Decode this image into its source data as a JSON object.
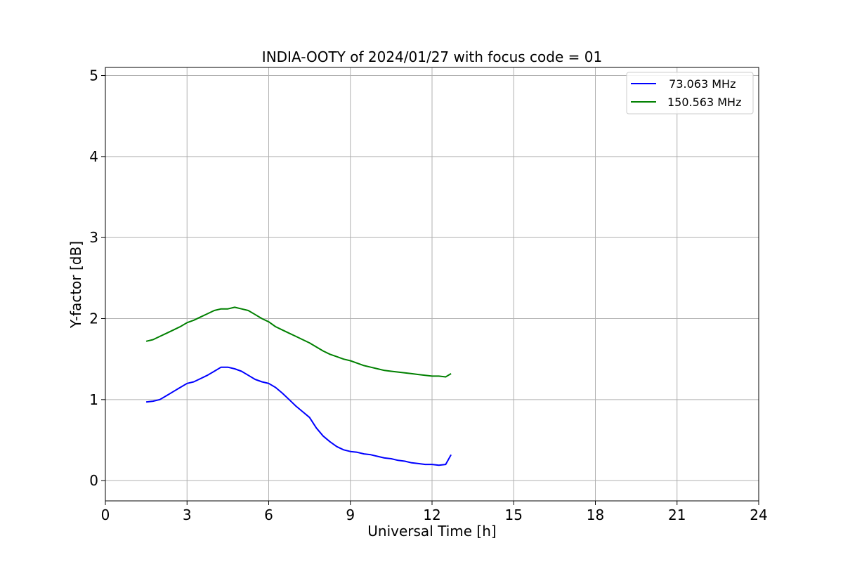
{
  "chart_data": {
    "type": "line",
    "title": "INDIA-OOTY of 2024/01/27 with focus code = 01",
    "xlabel": "Universal Time [h]",
    "ylabel": "Y-factor [dB]",
    "xlim": [
      0,
      24
    ],
    "ylim": [
      -0.25,
      5.1
    ],
    "x_ticks": [
      0,
      3,
      6,
      9,
      12,
      15,
      18,
      21,
      24
    ],
    "x_tick_labels": [
      "0",
      "3",
      "6",
      "9",
      "12",
      "15",
      "18",
      "21",
      "24"
    ],
    "y_ticks": [
      0,
      1,
      2,
      3,
      4,
      5
    ],
    "y_tick_labels": [
      "0",
      "1",
      "2",
      "3",
      "4",
      "5"
    ],
    "grid": true,
    "legend_position": "top-right",
    "series": [
      {
        "name": "  73.063 MHz",
        "color": "#0000ff",
        "x": [
          1.5,
          1.75,
          2.0,
          2.25,
          2.5,
          2.75,
          3.0,
          3.25,
          3.5,
          3.75,
          4.0,
          4.25,
          4.5,
          4.75,
          5.0,
          5.25,
          5.5,
          5.75,
          6.0,
          6.25,
          6.5,
          6.75,
          7.0,
          7.25,
          7.5,
          7.75,
          8.0,
          8.25,
          8.5,
          8.75,
          9.0,
          9.25,
          9.5,
          9.75,
          10.0,
          10.25,
          10.5,
          10.75,
          11.0,
          11.25,
          11.5,
          11.75,
          12.0,
          12.25,
          12.5,
          12.7
        ],
        "values": [
          0.97,
          0.98,
          1.0,
          1.05,
          1.1,
          1.15,
          1.2,
          1.22,
          1.26,
          1.3,
          1.35,
          1.4,
          1.4,
          1.38,
          1.35,
          1.3,
          1.25,
          1.22,
          1.2,
          1.15,
          1.08,
          1.0,
          0.92,
          0.85,
          0.78,
          0.65,
          0.55,
          0.48,
          0.42,
          0.38,
          0.36,
          0.35,
          0.33,
          0.32,
          0.3,
          0.28,
          0.27,
          0.25,
          0.24,
          0.22,
          0.21,
          0.2,
          0.2,
          0.19,
          0.2,
          0.32
        ]
      },
      {
        "name": "150.563 MHz",
        "color": "#008000",
        "x": [
          1.5,
          1.75,
          2.0,
          2.25,
          2.5,
          2.75,
          3.0,
          3.25,
          3.5,
          3.75,
          4.0,
          4.25,
          4.5,
          4.75,
          5.0,
          5.25,
          5.5,
          5.75,
          6.0,
          6.25,
          6.5,
          6.75,
          7.0,
          7.25,
          7.5,
          7.75,
          8.0,
          8.25,
          8.5,
          8.75,
          9.0,
          9.25,
          9.5,
          9.75,
          10.0,
          10.25,
          10.5,
          10.75,
          11.0,
          11.25,
          11.5,
          11.75,
          12.0,
          12.25,
          12.5,
          12.7
        ],
        "values": [
          1.72,
          1.74,
          1.78,
          1.82,
          1.86,
          1.9,
          1.95,
          1.98,
          2.02,
          2.06,
          2.1,
          2.12,
          2.12,
          2.14,
          2.12,
          2.1,
          2.05,
          2.0,
          1.96,
          1.9,
          1.86,
          1.82,
          1.78,
          1.74,
          1.7,
          1.65,
          1.6,
          1.56,
          1.53,
          1.5,
          1.48,
          1.45,
          1.42,
          1.4,
          1.38,
          1.36,
          1.35,
          1.34,
          1.33,
          1.32,
          1.31,
          1.3,
          1.29,
          1.29,
          1.28,
          1.32
        ]
      }
    ]
  }
}
